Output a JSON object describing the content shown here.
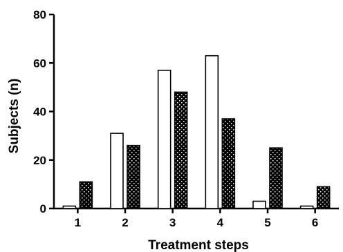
{
  "chart_data": {
    "type": "bar",
    "categories": [
      "1",
      "2",
      "3",
      "4",
      "5",
      "6"
    ],
    "series": [
      {
        "values": [
          1,
          31,
          57,
          63,
          3,
          1
        ],
        "color": "#ffffff"
      },
      {
        "values": [
          11,
          26,
          48,
          37,
          25,
          9
        ],
        "color": "#000000",
        "pattern": "brick-hatch"
      }
    ],
    "xlabel": "Treatment steps",
    "ylabel": "Subjects (n)",
    "ylim": [
      0,
      80
    ],
    "yticks": [
      0,
      20,
      40,
      60,
      80
    ],
    "grid": false,
    "legend": "none"
  }
}
